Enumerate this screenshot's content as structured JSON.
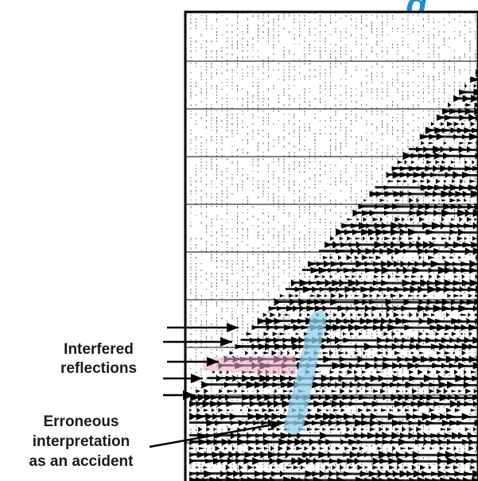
{
  "labels": {
    "interfered": [
      "Interfered",
      "reflections"
    ],
    "erroneous": [
      "Erroneous",
      "interpretation",
      "as an accident"
    ]
  },
  "title_fragment": "g",
  "colors": {
    "trace": "#000000",
    "highlight_blue": "#8fd0f0",
    "highlight_pink": "#f2a7c8",
    "title": "#1d8fd6",
    "text": "#1a1a1a"
  }
}
